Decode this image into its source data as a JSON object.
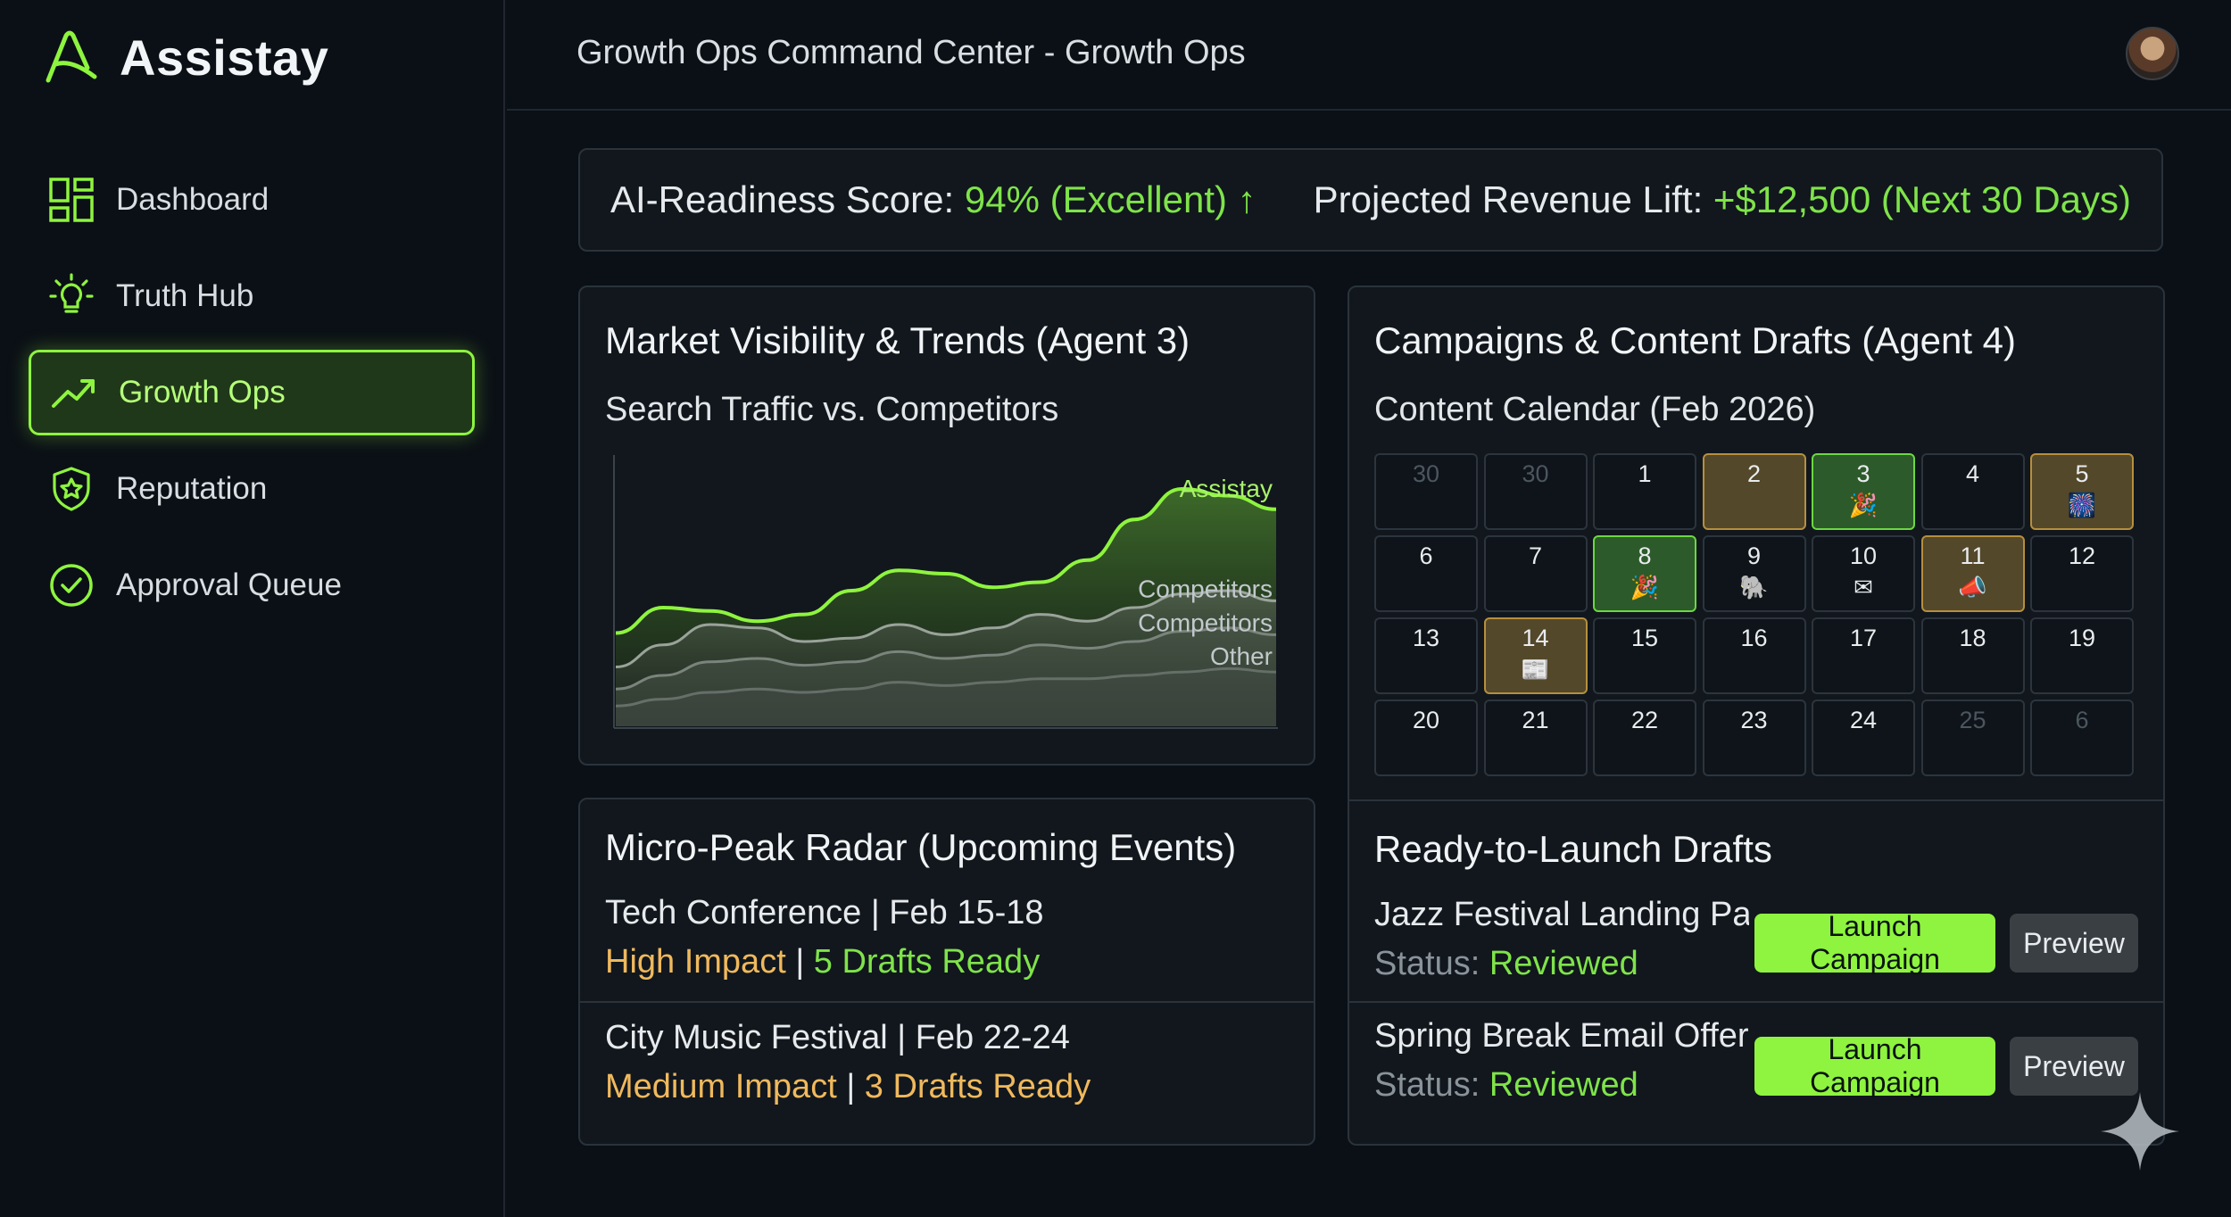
{
  "app": {
    "name": "Assistay"
  },
  "sidebar": {
    "items": [
      {
        "label": "Dashboard",
        "icon": "dashboard-icon",
        "active": false
      },
      {
        "label": "Truth Hub",
        "icon": "lightbulb-icon",
        "active": false
      },
      {
        "label": "Growth Ops",
        "icon": "trend-up-icon",
        "active": true
      },
      {
        "label": "Reputation",
        "icon": "shield-star-icon",
        "active": false
      },
      {
        "label": "Approval Queue",
        "icon": "check-circle-icon",
        "active": false
      }
    ]
  },
  "header": {
    "title": "Growth Ops Command Center - Growth Ops"
  },
  "score_bar": {
    "readiness_label": "AI-Readiness Score:",
    "readiness_value": "94% (Excellent)",
    "revenue_label": "Projected Revenue Lift:",
    "revenue_value": "+$12,500 (Next 30 Days)"
  },
  "market": {
    "title": "Market Visibility & Trends (Agent 3)",
    "subtitle": "Search Traffic vs. Competitors",
    "chart_data": {
      "type": "area",
      "series": [
        {
          "name": "Assistay",
          "values": [
            55,
            70,
            68,
            62,
            66,
            80,
            92,
            90,
            82,
            85,
            98,
            122,
            140,
            136,
            128
          ]
        },
        {
          "name": "Competitors",
          "values": [
            35,
            48,
            60,
            58,
            50,
            52,
            60,
            54,
            58,
            66,
            62,
            70,
            78,
            80,
            74
          ]
        },
        {
          "name": "Competitors",
          "values": [
            22,
            30,
            38,
            40,
            36,
            38,
            44,
            40,
            42,
            48,
            46,
            50,
            56,
            58,
            54
          ]
        },
        {
          "name": "Other",
          "values": [
            12,
            16,
            20,
            22,
            20,
            22,
            26,
            24,
            26,
            28,
            28,
            30,
            32,
            34,
            32
          ]
        }
      ],
      "ylim": [
        0,
        160
      ],
      "grid": false,
      "legend": "inline-right",
      "colors": [
        "#8ef43f",
        "#9aa39a",
        "#7b847c",
        "#666e68"
      ]
    }
  },
  "radar": {
    "title": "Micro-Peak Radar (Upcoming Events)",
    "events": [
      {
        "name": "Tech Conference | Feb 15-18",
        "impact": "High Impact",
        "sep": "|",
        "drafts": "5 Drafts Ready"
      },
      {
        "name": "City Music Festival | Feb 22-24",
        "impact": "Medium Impact",
        "sep": "|",
        "drafts": "3 Drafts Ready"
      }
    ]
  },
  "campaigns": {
    "title": "Campaigns & Content Drafts (Agent 4)",
    "calendar_title": "Content Calendar (Feb 2026)",
    "calendar": [
      {
        "day": "30",
        "style": "dim",
        "emoji": ""
      },
      {
        "day": "30",
        "style": "dim",
        "emoji": ""
      },
      {
        "day": "1",
        "style": "normal",
        "emoji": ""
      },
      {
        "day": "2",
        "style": "gold",
        "emoji": ""
      },
      {
        "day": "3",
        "style": "green",
        "emoji": "🎉"
      },
      {
        "day": "4",
        "style": "normal",
        "emoji": ""
      },
      {
        "day": "5",
        "style": "gold",
        "emoji": "🎆"
      },
      {
        "day": "6",
        "style": "normal",
        "emoji": ""
      },
      {
        "day": "7",
        "style": "normal",
        "emoji": ""
      },
      {
        "day": "8",
        "style": "green",
        "emoji": "🎉"
      },
      {
        "day": "9",
        "style": "normal",
        "emoji": "🐘"
      },
      {
        "day": "10",
        "style": "normal",
        "emoji": "✉"
      },
      {
        "day": "11",
        "style": "gold",
        "emoji": "📣"
      },
      {
        "day": "12",
        "style": "normal",
        "emoji": ""
      },
      {
        "day": "13",
        "style": "normal",
        "emoji": ""
      },
      {
        "day": "14",
        "style": "gold",
        "emoji": "📰"
      },
      {
        "day": "15",
        "style": "normal",
        "emoji": ""
      },
      {
        "day": "16",
        "style": "normal",
        "emoji": ""
      },
      {
        "day": "17",
        "style": "normal",
        "emoji": ""
      },
      {
        "day": "18",
        "style": "normal",
        "emoji": ""
      },
      {
        "day": "19",
        "style": "normal",
        "emoji": ""
      },
      {
        "day": "20",
        "style": "normal",
        "emoji": ""
      },
      {
        "day": "21",
        "style": "normal",
        "emoji": ""
      },
      {
        "day": "22",
        "style": "normal",
        "emoji": ""
      },
      {
        "day": "23",
        "style": "normal",
        "emoji": ""
      },
      {
        "day": "24",
        "style": "normal",
        "emoji": ""
      },
      {
        "day": "25",
        "style": "dim",
        "emoji": ""
      },
      {
        "day": "6",
        "style": "dim",
        "emoji": ""
      }
    ],
    "drafts_title": "Ready-to-Launch Drafts",
    "drafts": [
      {
        "name": "Jazz Festival Landing Page",
        "status_label": "Status:",
        "status_value": "Reviewed",
        "launch_label": "Launch Campaign",
        "preview_label": "Preview"
      },
      {
        "name": "Spring Break Email Offer",
        "status_label": "Status:",
        "status_value": "Reviewed",
        "launch_label": "Launch Campaign",
        "preview_label": "Preview"
      }
    ]
  },
  "colors": {
    "accent": "#8ef43f",
    "warning": "#f0b95d",
    "bg": "#0b1016",
    "card": "#11171d"
  }
}
